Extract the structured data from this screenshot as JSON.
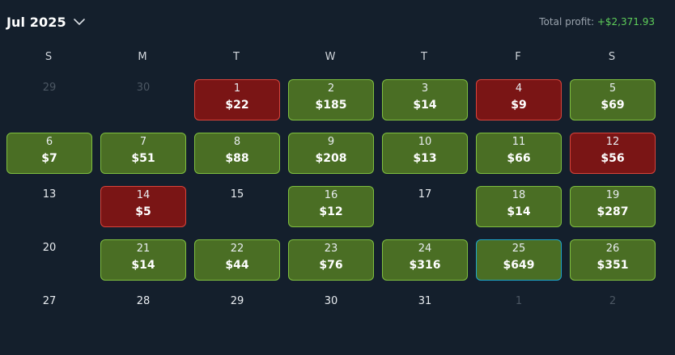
{
  "header": {
    "month_label": "Jul 2025",
    "total_profit_label": "Total profit:",
    "total_profit_value": "+$2,371.93"
  },
  "weekdays": [
    "S",
    "M",
    "T",
    "W",
    "T",
    "F",
    "S"
  ],
  "colors": {
    "profit": "#4a6e24",
    "loss": "#7a1515",
    "today_border": "#1fa6c9",
    "profit_text": "#5fcf5a"
  },
  "days": [
    {
      "day": "29",
      "amount": "",
      "type": "muted"
    },
    {
      "day": "30",
      "amount": "",
      "type": "muted"
    },
    {
      "day": "1",
      "amount": "$22",
      "type": "loss"
    },
    {
      "day": "2",
      "amount": "$185",
      "type": "profit"
    },
    {
      "day": "3",
      "amount": "$14",
      "type": "profit"
    },
    {
      "day": "4",
      "amount": "$9",
      "type": "loss"
    },
    {
      "day": "5",
      "amount": "$69",
      "type": "profit"
    },
    {
      "day": "6",
      "amount": "$7",
      "type": "profit"
    },
    {
      "day": "7",
      "amount": "$51",
      "type": "profit"
    },
    {
      "day": "8",
      "amount": "$88",
      "type": "profit"
    },
    {
      "day": "9",
      "amount": "$208",
      "type": "profit"
    },
    {
      "day": "10",
      "amount": "$13",
      "type": "profit"
    },
    {
      "day": "11",
      "amount": "$66",
      "type": "profit"
    },
    {
      "day": "12",
      "amount": "$56",
      "type": "loss"
    },
    {
      "day": "13",
      "amount": "",
      "type": "plain"
    },
    {
      "day": "14",
      "amount": "$5",
      "type": "loss"
    },
    {
      "day": "15",
      "amount": "",
      "type": "plain"
    },
    {
      "day": "16",
      "amount": "$12",
      "type": "profit"
    },
    {
      "day": "17",
      "amount": "",
      "type": "plain"
    },
    {
      "day": "18",
      "amount": "$14",
      "type": "profit"
    },
    {
      "day": "19",
      "amount": "$287",
      "type": "profit"
    },
    {
      "day": "20",
      "amount": "",
      "type": "plain"
    },
    {
      "day": "21",
      "amount": "$14",
      "type": "profit"
    },
    {
      "day": "22",
      "amount": "$44",
      "type": "profit"
    },
    {
      "day": "23",
      "amount": "$76",
      "type": "profit"
    },
    {
      "day": "24",
      "amount": "$316",
      "type": "profit"
    },
    {
      "day": "25",
      "amount": "$649",
      "type": "today"
    },
    {
      "day": "26",
      "amount": "$351",
      "type": "profit"
    },
    {
      "day": "27",
      "amount": "",
      "type": "plain"
    },
    {
      "day": "28",
      "amount": "",
      "type": "plain"
    },
    {
      "day": "29",
      "amount": "",
      "type": "plain"
    },
    {
      "day": "30",
      "amount": "",
      "type": "plain"
    },
    {
      "day": "31",
      "amount": "",
      "type": "plain"
    },
    {
      "day": "1",
      "amount": "",
      "type": "muted"
    },
    {
      "day": "2",
      "amount": "",
      "type": "muted"
    }
  ]
}
